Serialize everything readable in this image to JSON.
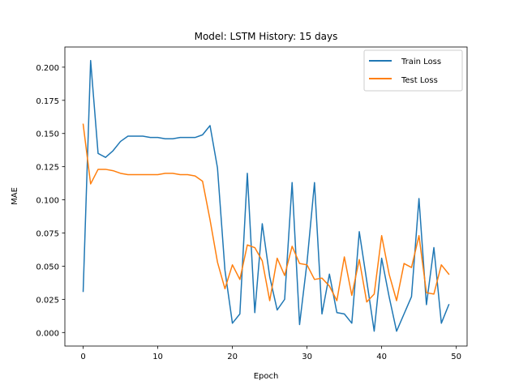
{
  "chart_data": {
    "type": "line",
    "title": "Model: LSTM  History: 15 days",
    "xlabel": "Epoch",
    "ylabel": "MAE",
    "xlim": [
      -2.45,
      51.45
    ],
    "ylim": [
      -0.0102,
      0.2152
    ],
    "xticks": [
      0,
      10,
      20,
      30,
      40,
      50
    ],
    "xtick_labels": [
      "0",
      "10",
      "20",
      "30",
      "40",
      "50"
    ],
    "yticks": [
      0.0,
      0.025,
      0.05,
      0.075,
      0.1,
      0.125,
      0.15,
      0.175,
      0.2
    ],
    "ytick_labels": [
      "0.000",
      "0.025",
      "0.050",
      "0.075",
      "0.100",
      "0.125",
      "0.150",
      "0.175",
      "0.200"
    ],
    "grid": false,
    "legend_position": "top-right",
    "x": [
      0,
      1,
      2,
      3,
      4,
      5,
      6,
      7,
      8,
      9,
      10,
      11,
      12,
      13,
      14,
      15,
      16,
      17,
      18,
      19,
      20,
      21,
      22,
      23,
      24,
      25,
      26,
      27,
      28,
      29,
      30,
      31,
      32,
      33,
      34,
      35,
      36,
      37,
      38,
      39,
      40,
      41,
      42,
      43,
      44,
      45,
      46,
      47,
      48,
      49
    ],
    "series": [
      {
        "name": "Train Loss",
        "color": "#1f77b4",
        "values": [
          0.031,
          0.205,
          0.135,
          0.132,
          0.137,
          0.144,
          0.148,
          0.148,
          0.148,
          0.147,
          0.147,
          0.146,
          0.146,
          0.147,
          0.147,
          0.147,
          0.149,
          0.156,
          0.124,
          0.047,
          0.007,
          0.014,
          0.12,
          0.015,
          0.082,
          0.042,
          0.017,
          0.025,
          0.113,
          0.006,
          0.053,
          0.113,
          0.014,
          0.044,
          0.015,
          0.014,
          0.007,
          0.076,
          0.039,
          0.001,
          0.056,
          0.027,
          0.001,
          0.014,
          0.027,
          0.101,
          0.021,
          0.064,
          0.007,
          0.021
        ]
      },
      {
        "name": "Test Loss",
        "color": "#ff7f0e",
        "values": [
          0.157,
          0.112,
          0.123,
          0.123,
          0.122,
          0.12,
          0.119,
          0.119,
          0.119,
          0.119,
          0.119,
          0.12,
          0.12,
          0.119,
          0.119,
          0.118,
          0.114,
          0.085,
          0.053,
          0.033,
          0.051,
          0.04,
          0.066,
          0.064,
          0.054,
          0.024,
          0.056,
          0.043,
          0.065,
          0.052,
          0.051,
          0.04,
          0.041,
          0.035,
          0.024,
          0.057,
          0.028,
          0.055,
          0.023,
          0.029,
          0.073,
          0.044,
          0.024,
          0.052,
          0.049,
          0.073,
          0.03,
          0.029,
          0.051,
          0.044
        ]
      }
    ]
  }
}
